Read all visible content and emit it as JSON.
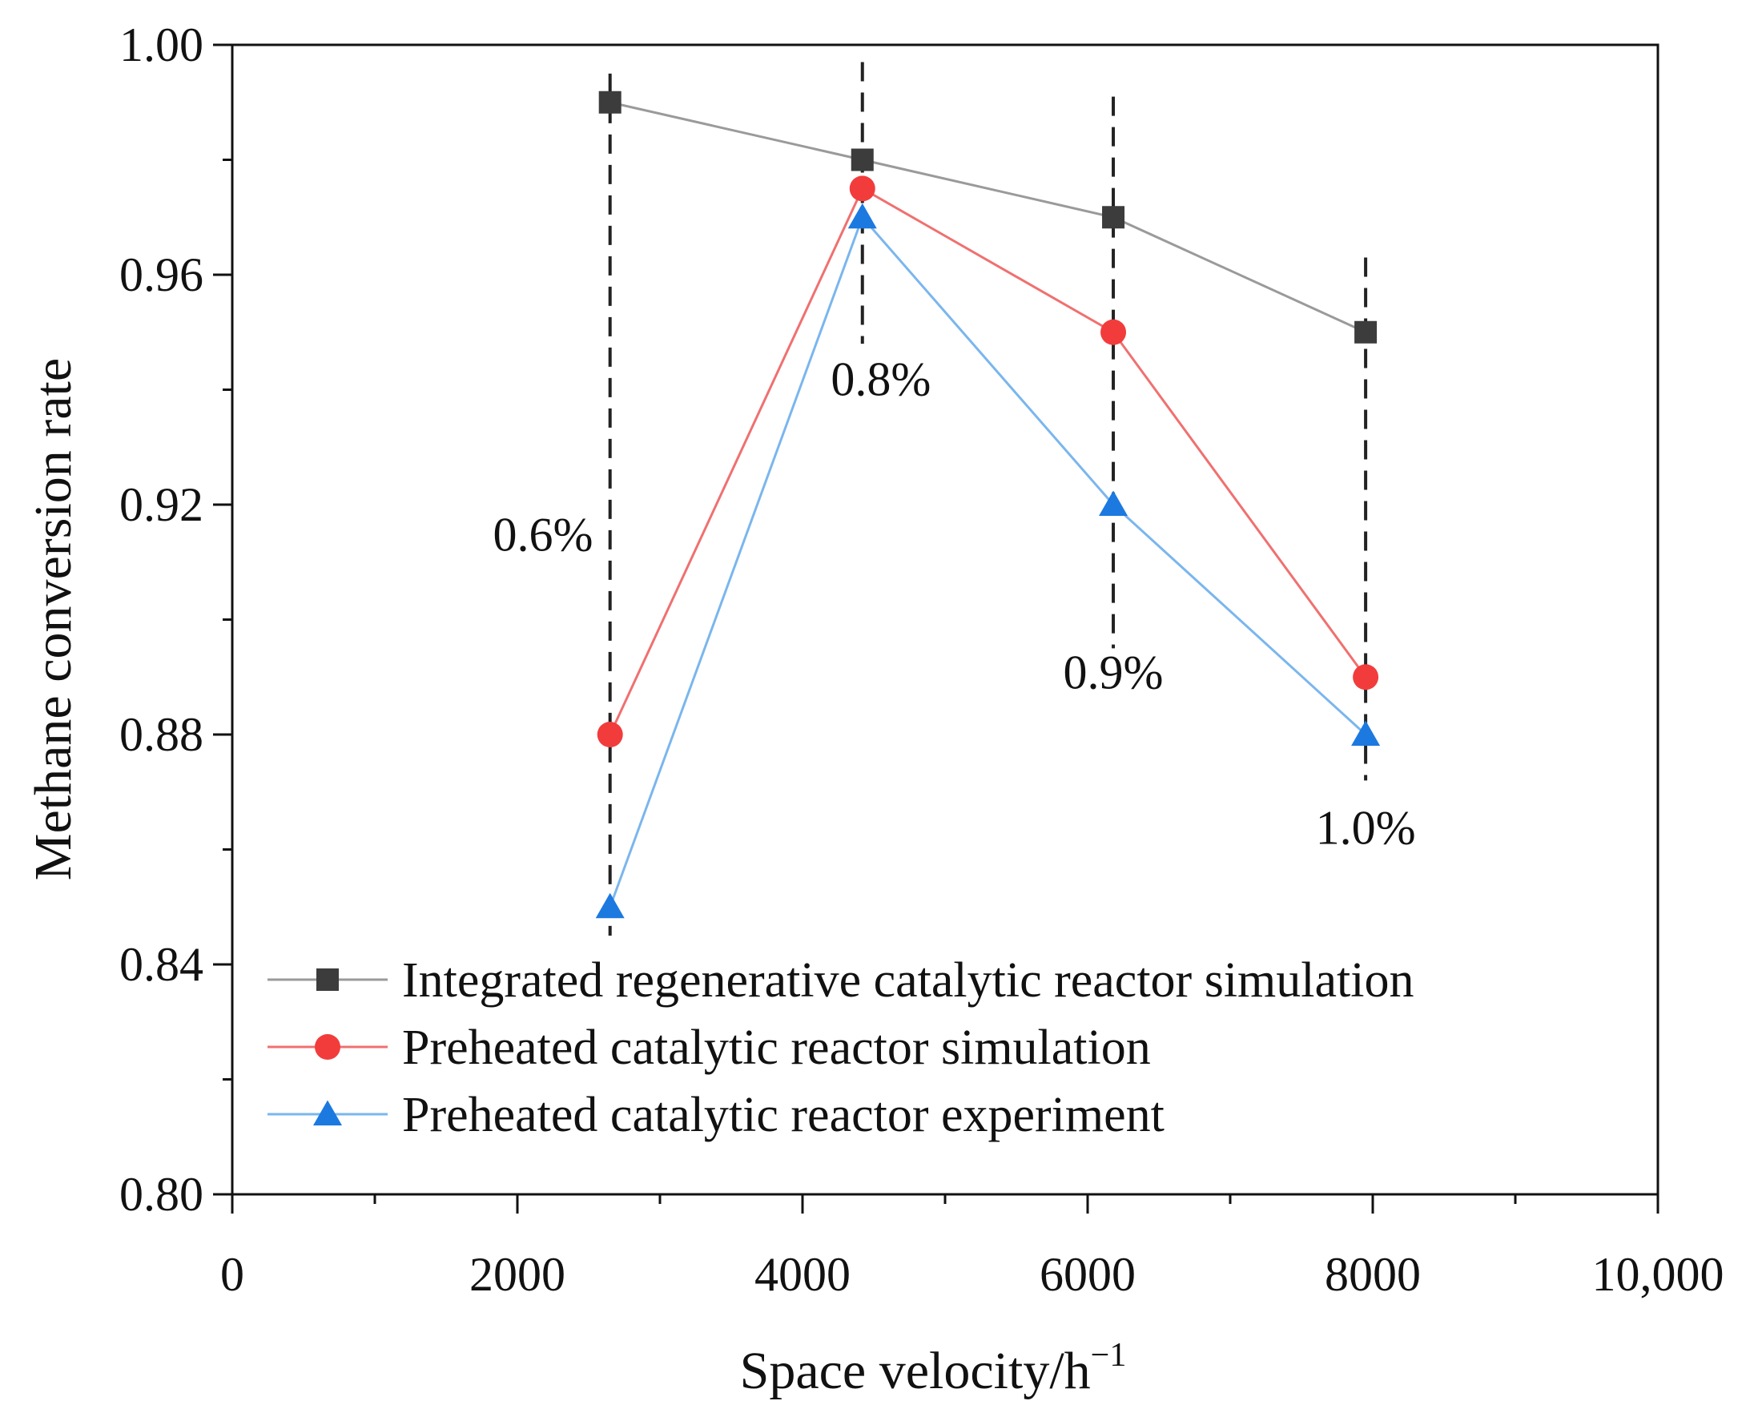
{
  "chart_data": {
    "type": "line",
    "title": "",
    "xlabel": "Space velocity/h",
    "xlabel_superscript": "−1",
    "ylabel": "Methane conversion rate",
    "xlim": [
      0,
      10000
    ],
    "ylim": [
      0.8,
      1.0
    ],
    "x_ticks": [
      0,
      2000,
      4000,
      6000,
      8000,
      10000
    ],
    "x_tick_labels": [
      "0",
      "2000",
      "4000",
      "6000",
      "8000",
      "10,000"
    ],
    "x_minor_step": 1000,
    "y_ticks": [
      0.8,
      0.84,
      0.88,
      0.92,
      0.96,
      1.0
    ],
    "y_tick_labels": [
      "0.80",
      "0.84",
      "0.88",
      "0.92",
      "0.96",
      "1.00"
    ],
    "y_minor_step": 0.02,
    "grid": false,
    "legend_position": "bottom-left",
    "series": [
      {
        "name": "Integrated regenerative catalytic reactor simulation",
        "marker": "square",
        "line_color": "#9a9a9a",
        "marker_color": "#3c3c3c",
        "x": [
          2650,
          4420,
          6180,
          7950
        ],
        "y": [
          0.99,
          0.98,
          0.97,
          0.95
        ]
      },
      {
        "name": "Preheated catalytic reactor simulation",
        "marker": "circle",
        "line_color": "#f07070",
        "marker_color": "#f23c3c",
        "x": [
          2650,
          4420,
          6180,
          7950
        ],
        "y": [
          0.88,
          0.975,
          0.95,
          0.89
        ]
      },
      {
        "name": "Preheated catalytic reactor experiment",
        "marker": "triangle",
        "line_color": "#7ab6ee",
        "marker_color": "#1c79e0",
        "x": [
          2650,
          4420,
          6180,
          7950
        ],
        "y": [
          0.85,
          0.97,
          0.92,
          0.88
        ]
      }
    ],
    "reference_lines": [
      {
        "x": 2650,
        "y_range": [
          0.845,
          0.995
        ],
        "label": "0.6%",
        "label_x": 2180,
        "label_y": 0.912
      },
      {
        "x": 4420,
        "y_range": [
          0.948,
          0.997
        ],
        "label": "0.8%",
        "label_x": 4550,
        "label_y": 0.939
      },
      {
        "x": 6180,
        "y_range": [
          0.895,
          0.991
        ],
        "label": "0.9%",
        "label_x": 6180,
        "label_y": 0.888
      },
      {
        "x": 7950,
        "y_range": [
          0.872,
          0.963
        ],
        "label": "1.0%",
        "label_x": 7950,
        "label_y": 0.861
      }
    ],
    "colors": {
      "axis": "#111111",
      "reference_line": "#222222"
    }
  }
}
